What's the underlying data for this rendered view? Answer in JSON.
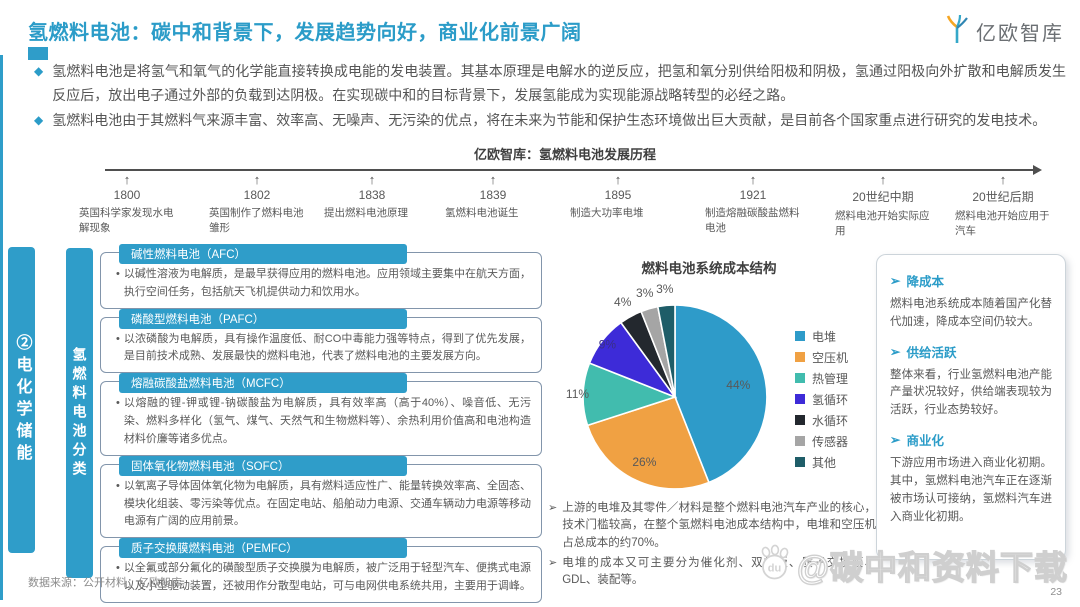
{
  "header": {
    "title": "氢燃料电池：碳中和背景下，发展趋势向好，商业化前景广阔",
    "logo_text": "亿欧智库"
  },
  "markers": {
    "diamond": "◆",
    "dot": "•",
    "arrow": "➢",
    "up_arrow": "↑"
  },
  "intro_bullets": [
    "氢燃料电池是将氢气和氧气的化学能直接转换成电能的发电装置。其基本原理是电解水的逆反应，把氢和氧分别供给阳极和阴极，氢通过阳极向外扩散和电解质发生反应后，放出电子通过外部的负载到达阴极。在实现碳中和的目标背景下，发展氢能成为实现能源战略转型的必经之路。",
    "氢燃料电池由于其燃料气来源丰富、效率高、无噪声、无污染的优点，将在未来为节能和保护生态环境做出巨大贡献，是目前各个国家重点进行研究的发电技术。"
  ],
  "timeline": {
    "title": "亿欧智库：氢燃料电池发展历程",
    "events": [
      {
        "year": "1800",
        "desc": "英国科学家发现水电解现象"
      },
      {
        "year": "1802",
        "desc": "英国制作了燃料电池雏形"
      },
      {
        "year": "1838",
        "desc": "提出燃料电池原理"
      },
      {
        "year": "1839",
        "desc": "氢燃料电池诞生"
      },
      {
        "year": "1895",
        "desc": "制造大功率电堆"
      },
      {
        "year": "1921",
        "desc": "制造熔融碳酸盐燃料电池"
      },
      {
        "year": "20世纪中期",
        "desc": "燃料电池开始实际应用"
      },
      {
        "year": "20世纪后期",
        "desc": "燃料电池开始应用于汽车"
      }
    ]
  },
  "section_tab": "②电化学储能",
  "classification": {
    "tab": "氢燃料电池分类",
    "items": [
      {
        "name": "碱性燃料电池（AFC）",
        "desc": "以碱性溶液为电解质，是最早获得应用的燃料电池。应用领域主要集中在航天方面，执行空间任务，包括航天飞机提供动力和饮用水。"
      },
      {
        "name": "磷酸型燃料电池（PAFC）",
        "desc": "以浓磷酸为电解质，具有操作温度低、耐CO中毒能力强等特点，得到了优先发展，是目前技术成熟、发展最快的燃料电池，代表了燃料电池的主要发展方向。"
      },
      {
        "name": "熔融碳酸盐燃料电池（MCFC）",
        "desc": "以熔融的锂-钾或锂-钠碳酸盐为电解质，具有效率高（高于40%）、噪音低、无污染、燃料多样化（氢气、煤气、天然气和生物燃料等）、余热利用价值高和电池构造材料价廉等诸多优点。"
      },
      {
        "name": "固体氧化物燃料电池（SOFC）",
        "desc": "以氧离子导体固体氧化物为电解质，具有燃料适应性广、能量转换效率高、全固态、模块化组装、零污染等优点。在固定电站、船舶动力电源、交通车辆动力电源等移动电源有广阔的应用前景。"
      },
      {
        "name": "质子交换膜燃料电池（PEMFC）",
        "desc": "以全氟或部分氟化的磺酸型质子交换膜为电解质，被广泛用于轻型汽车、便携式电源以及小型驱动装置，还被用作分散型电站，可与电网供电系统共用，主要用于调峰。"
      }
    ]
  },
  "chart_data": {
    "type": "pie",
    "title": "燃料电池系统成本结构",
    "labels": [
      "电堆",
      "空压机",
      "热管理",
      "氢循环",
      "水循环",
      "传感器",
      "其他"
    ],
    "values": [
      44,
      26,
      11,
      9,
      4,
      3,
      3
    ],
    "unit": "%",
    "data_labels": [
      "44%",
      "26%",
      "11%",
      "9%",
      "4%",
      "3%",
      "3%"
    ],
    "colors": [
      "#2E9BC9",
      "#F0A143",
      "#41BCAE",
      "#3D2BD8",
      "#23282E",
      "#A5A5A5",
      "#1E5D68"
    ],
    "legend_position": "right"
  },
  "chart_notes": [
    "上游的电堆及其零件／材料是整个燃料电池汽车产业的核心，技术门槛较高，在整个氢燃料电池成本结构中，电堆和空压机占总成本的约70%。",
    "电堆的成本又可主要分为催化剂、双极板、质子交换膜、GDL、装配等。"
  ],
  "insights": [
    {
      "heading": "降成本",
      "body": "燃料电池系统成本随着国产化替代加速，降成本空间仍较大。"
    },
    {
      "heading": "供给活跃",
      "body": "整体来看，行业氢燃料电池产能产量状况较好，供给端表现较为活跃，行业态势较好。"
    },
    {
      "heading": "商业化",
      "body": "下游应用市场进入商业化初期。其中，氢燃料电池汽车正在逐渐被市场认可接纳，氢燃料汽车进入商业化初期。"
    }
  ],
  "footer": {
    "source": "数据来源：公开材料；亿欧智库",
    "watermark": "@碳中和资料下载",
    "watermark_badge": "du",
    "page_number": "23"
  }
}
